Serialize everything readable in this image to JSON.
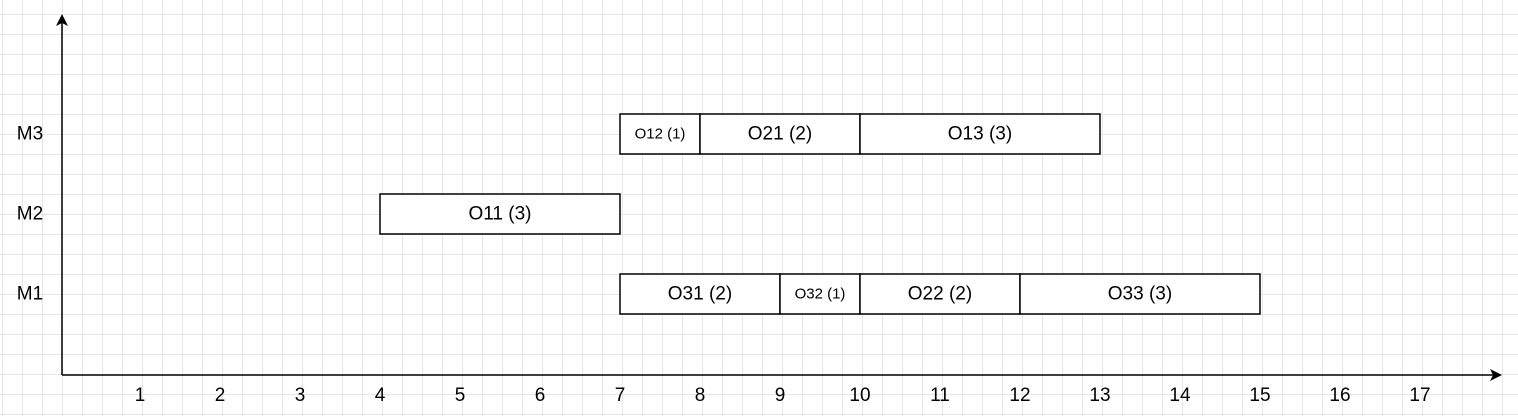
{
  "chart_data": {
    "type": "gantt",
    "x_ticks": [
      "1",
      "2",
      "3",
      "4",
      "5",
      "6",
      "7",
      "8",
      "9",
      "10",
      "11",
      "12",
      "13",
      "14",
      "15",
      "16",
      "17"
    ],
    "machines": [
      "M1",
      "M2",
      "M3"
    ],
    "tasks": [
      {
        "machine": "M3",
        "start": 7,
        "end": 8,
        "label": "O12 (1)"
      },
      {
        "machine": "M3",
        "start": 8,
        "end": 10,
        "label": "O21 (2)"
      },
      {
        "machine": "M3",
        "start": 10,
        "end": 13,
        "label": "O13 (3)"
      },
      {
        "machine": "M2",
        "start": 4,
        "end": 7,
        "label": "O11 (3)"
      },
      {
        "machine": "M1",
        "start": 7,
        "end": 9,
        "label": "O31 (2)"
      },
      {
        "machine": "M1",
        "start": 9,
        "end": 10,
        "label": "O32 (1)"
      },
      {
        "machine": "M1",
        "start": 10,
        "end": 12,
        "label": "O22 (2)"
      },
      {
        "machine": "M1",
        "start": 12,
        "end": 15,
        "label": "O33 (3)"
      }
    ]
  }
}
